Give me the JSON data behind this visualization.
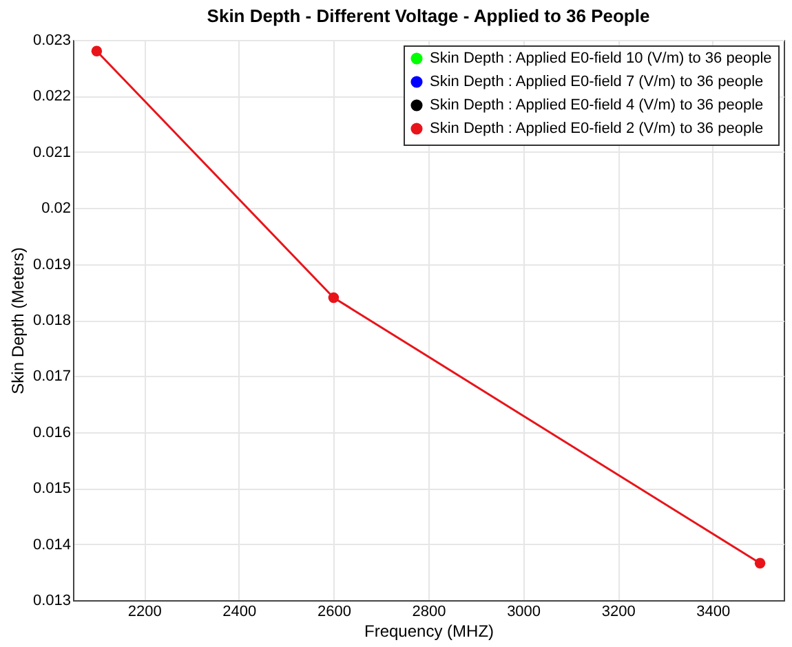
{
  "chart_data": {
    "type": "line",
    "title": "Skin Depth - Different Voltage - Applied to 36 People",
    "xlabel": "Frequency (MHZ)",
    "ylabel": "Skin Depth (Meters)",
    "x": [
      2100,
      2600,
      3500
    ],
    "series": [
      {
        "name": "Skin Depth : Applied E0-field 10 (V/m) to 36 people",
        "color": "#00ff00",
        "values": [
          null,
          null,
          null
        ]
      },
      {
        "name": "Skin Depth : Applied E0-field 7 (V/m) to 36 people",
        "color": "#0000ff",
        "values": [
          null,
          null,
          null
        ]
      },
      {
        "name": "Skin Depth : Applied E0-field 4 (V/m) to 36 people",
        "color": "#000000",
        "values": [
          null,
          null,
          null
        ]
      },
      {
        "name": "Skin Depth : Applied E0-field 2 (V/m) to 36 people",
        "color": "#e8141a",
        "values": [
          0.0228,
          0.0184,
          0.01366
        ]
      }
    ],
    "xlim": [
      2050,
      3550
    ],
    "xticks": [
      2200,
      2400,
      2600,
      2800,
      3000,
      3200,
      3400
    ],
    "ylim": [
      0.013,
      0.023
    ],
    "yticks": [
      0.013,
      0.014,
      0.015,
      0.016,
      0.017,
      0.018,
      0.019,
      0.02,
      0.021,
      0.022,
      0.023
    ],
    "grid": true,
    "legend": "top right",
    "marker": "circle",
    "line_style": "solid"
  }
}
